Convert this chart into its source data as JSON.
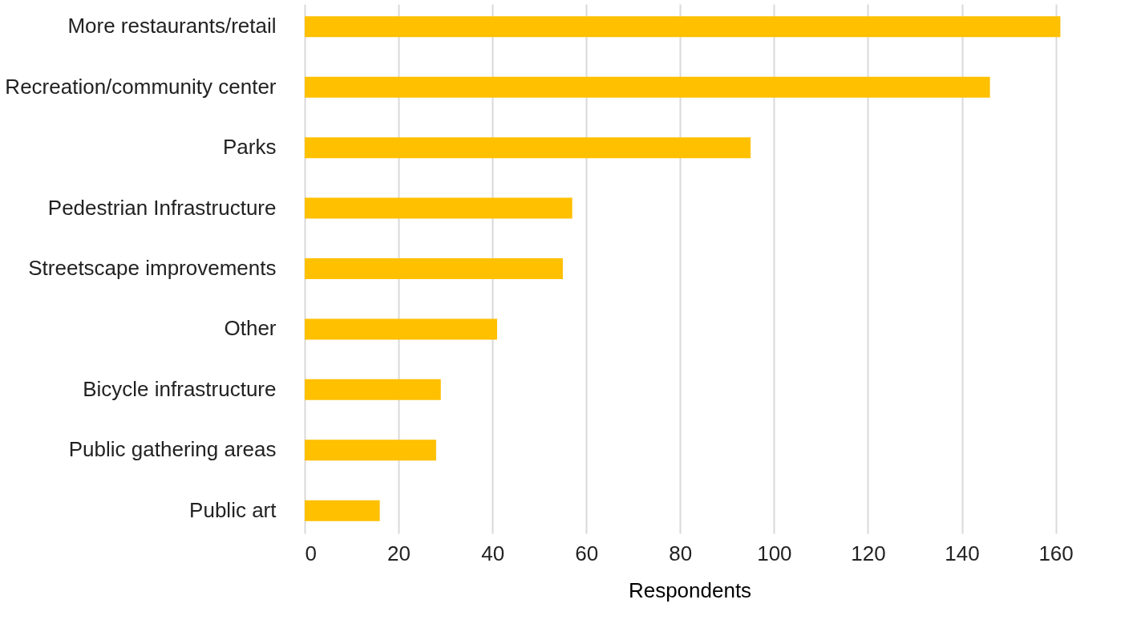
{
  "chart_data": {
    "type": "bar",
    "orientation": "horizontal",
    "xlabel": "Respondents",
    "categories": [
      "More restaurants/retail",
      "Recreation/community center",
      "Parks",
      "Pedestrian Infrastructure",
      "Streetscape improvements",
      "Other",
      "Bicycle infrastructure",
      "Public gathering areas",
      "Public art"
    ],
    "values": [
      161,
      146,
      95,
      57,
      55,
      41,
      29,
      28,
      16
    ],
    "color": "#ffc000",
    "xlim": [
      0,
      164
    ],
    "xticks": [
      0,
      20,
      40,
      60,
      80,
      100,
      120,
      140,
      160
    ],
    "grid": "x"
  }
}
